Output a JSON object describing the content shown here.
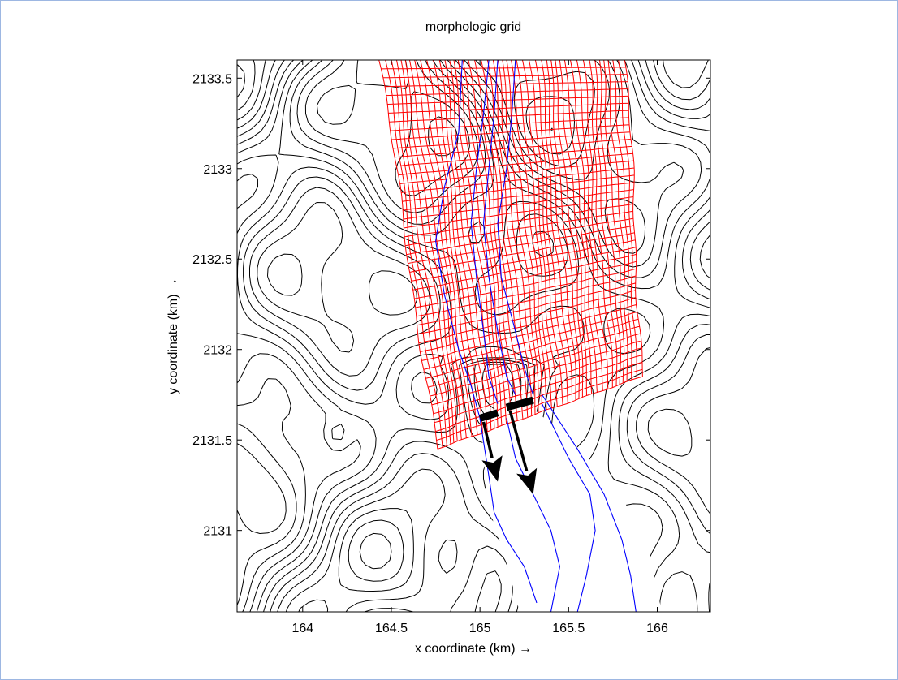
{
  "chart_data": {
    "type": "contour-map",
    "title": "morphologic grid",
    "xlabel": "x coordinate (km) →",
    "ylabel": "y coordinate (km) →",
    "xlim": [
      163.63,
      166.3
    ],
    "ylim": [
      2130.55,
      2133.6
    ],
    "xticks": [
      {
        "value": 164,
        "label": "164"
      },
      {
        "value": 164.5,
        "label": "164.5"
      },
      {
        "value": 165,
        "label": "165"
      },
      {
        "value": 165.5,
        "label": "165.5"
      },
      {
        "value": 166,
        "label": "166"
      }
    ],
    "yticks": [
      {
        "value": 2131,
        "label": "2131"
      },
      {
        "value": 2131.5,
        "label": "2131.5"
      },
      {
        "value": 2132,
        "label": "2132"
      },
      {
        "value": 2132.5,
        "label": "2132.5"
      },
      {
        "value": 2133,
        "label": "2133"
      },
      {
        "value": 2133.5,
        "label": "2133.5"
      }
    ],
    "grid_region": {
      "corners": [
        [
          164.43,
          2133.6
        ],
        [
          165.82,
          2133.6
        ],
        [
          165.92,
          2131.85
        ],
        [
          164.76,
          2131.45
        ]
      ],
      "color": "#ff0000"
    },
    "colors": {
      "contours": "#000000",
      "channel": "#0000ff",
      "grid": "#ff0000",
      "arrows": "#000000"
    },
    "channel_lines": [
      [
        [
          164.9,
          2133.6
        ],
        [
          164.88,
          2133.2
        ],
        [
          164.8,
          2132.9
        ],
        [
          164.75,
          2132.6
        ],
        [
          164.8,
          2132.3
        ],
        [
          164.88,
          2132.0
        ],
        [
          164.95,
          2131.8
        ],
        [
          165.0,
          2131.62
        ]
      ],
      [
        [
          165.05,
          2133.6
        ],
        [
          165.02,
          2133.3
        ],
        [
          164.98,
          2133.0
        ],
        [
          164.95,
          2132.7
        ],
        [
          164.98,
          2132.4
        ],
        [
          165.02,
          2132.1
        ],
        [
          165.05,
          2131.85
        ],
        [
          165.1,
          2131.7
        ]
      ],
      [
        [
          165.1,
          2133.6
        ],
        [
          165.08,
          2133.3
        ],
        [
          165.05,
          2133.0
        ],
        [
          165.02,
          2132.7
        ],
        [
          165.05,
          2132.4
        ],
        [
          165.1,
          2132.1
        ],
        [
          165.15,
          2131.85
        ],
        [
          165.2,
          2131.75
        ]
      ],
      [
        [
          165.2,
          2133.6
        ],
        [
          165.18,
          2133.3
        ],
        [
          165.15,
          2133.0
        ],
        [
          165.1,
          2132.7
        ],
        [
          165.12,
          2132.4
        ],
        [
          165.2,
          2132.1
        ],
        [
          165.25,
          2131.9
        ],
        [
          165.3,
          2131.75
        ]
      ],
      [
        [
          165.0,
          2131.62
        ],
        [
          165.05,
          2131.3
        ],
        [
          165.08,
          2131.1
        ],
        [
          165.15,
          2130.95
        ],
        [
          165.25,
          2130.8
        ],
        [
          165.32,
          2130.6
        ]
      ],
      [
        [
          165.15,
          2131.62
        ],
        [
          165.2,
          2131.4
        ],
        [
          165.3,
          2131.2
        ],
        [
          165.4,
          2131.0
        ],
        [
          165.45,
          2130.8
        ],
        [
          165.4,
          2130.55
        ]
      ],
      [
        [
          165.35,
          2131.7
        ],
        [
          165.5,
          2131.4
        ],
        [
          165.62,
          2131.2
        ],
        [
          165.65,
          2131.0
        ],
        [
          165.6,
          2130.75
        ],
        [
          165.55,
          2130.55
        ]
      ],
      [
        [
          165.35,
          2131.75
        ],
        [
          165.55,
          2131.45
        ],
        [
          165.7,
          2131.2
        ],
        [
          165.8,
          2130.95
        ],
        [
          165.85,
          2130.75
        ],
        [
          165.88,
          2130.55
        ]
      ]
    ],
    "boundaries": [
      {
        "from": [
          165.0,
          2131.62
        ],
        "to": [
          165.1,
          2131.65
        ]
      },
      {
        "from": [
          165.15,
          2131.68
        ],
        "to": [
          165.3,
          2131.72
        ]
      }
    ],
    "arrows": [
      {
        "from": [
          165.02,
          2131.6
        ],
        "to": [
          165.1,
          2131.27
        ]
      },
      {
        "from": [
          165.17,
          2131.66
        ],
        "to": [
          165.3,
          2131.2
        ]
      }
    ]
  }
}
